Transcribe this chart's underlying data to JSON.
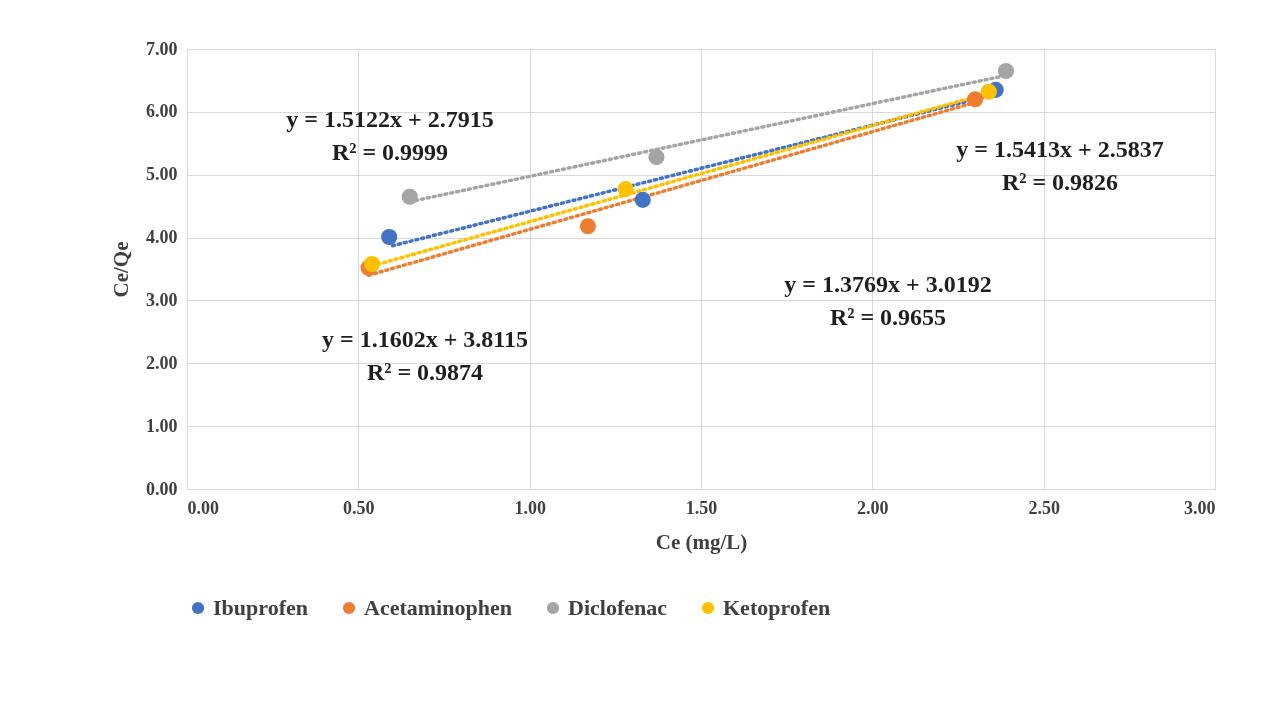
{
  "chart_data": {
    "type": "scatter",
    "xlabel": "Ce (mg/L)",
    "ylabel": "Ce/Qe",
    "xlim": [
      0,
      3
    ],
    "xticks": [
      {
        "value": 0,
        "label": "0.00"
      },
      {
        "value": 0.5,
        "label": "0.50"
      },
      {
        "value": 1,
        "label": "1.00"
      },
      {
        "value": 1.5,
        "label": "1.50"
      },
      {
        "value": 2,
        "label": "2.00"
      },
      {
        "value": 2.5,
        "label": "2.50"
      },
      {
        "value": 3,
        "label": "3.00"
      }
    ],
    "ylim": [
      0,
      7
    ],
    "yticks": [
      {
        "value": 0,
        "label": "0.00"
      },
      {
        "value": 1,
        "label": "1.00"
      },
      {
        "value": 2,
        "label": "2.00"
      },
      {
        "value": 3,
        "label": "3.00"
      },
      {
        "value": 4,
        "label": "4.00"
      },
      {
        "value": 5,
        "label": "5.00"
      },
      {
        "value": 6,
        "label": "6.00"
      },
      {
        "value": 7,
        "label": "7.00"
      }
    ],
    "grid": true,
    "legend": "bottom",
    "marker": "circle",
    "series": [
      {
        "name": "Ibuprofen",
        "color": "#4472c4",
        "x": [
          0.59,
          1.33,
          2.36
        ],
        "values": [
          4.01,
          4.6,
          6.35
        ]
      },
      {
        "name": "Acetaminophen",
        "color": "#ed7d31",
        "x": [
          0.53,
          1.17,
          2.3
        ],
        "values": [
          3.52,
          4.18,
          6.2
        ]
      },
      {
        "name": "Diclofenac",
        "color": "#a5a5a5",
        "x": [
          0.65,
          1.37,
          2.39
        ],
        "values": [
          4.65,
          5.28,
          6.65
        ]
      },
      {
        "name": "Ketoprofen",
        "color": "#ffc000",
        "x": [
          0.54,
          1.28,
          2.34
        ],
        "values": [
          3.58,
          4.77,
          6.32
        ]
      },
      {
        "type": "line",
        "line_style": "dotted",
        "marker": "none",
        "color": "#4472c4",
        "x": [
          0.6,
          2.36
        ],
        "values": [
          3.87,
          6.28
        ]
      },
      {
        "type": "line",
        "line_style": "dotted",
        "marker": "none",
        "color": "#ed7d31",
        "x": [
          0.53,
          2.3
        ],
        "values": [
          3.4,
          6.15
        ]
      },
      {
        "type": "line",
        "line_style": "dotted",
        "marker": "none",
        "color": "#a5a5a5",
        "x": [
          0.65,
          2.39
        ],
        "values": [
          4.57,
          6.58
        ]
      },
      {
        "type": "line",
        "line_style": "dotted",
        "marker": "none",
        "color": "#ffc000",
        "x": [
          0.54,
          2.34
        ],
        "values": [
          3.55,
          6.3
        ]
      }
    ],
    "annotations": [
      "y = 1.5122x + 2.7915\nR² = 0.9999",
      "y = 1.5413x + 2.5837\nR² = 0.9826",
      "y = 1.3769x + 3.0192\nR² = 0.9655",
      "y = 1.1602x + 3.8115\nR² = 0.9874"
    ]
  }
}
